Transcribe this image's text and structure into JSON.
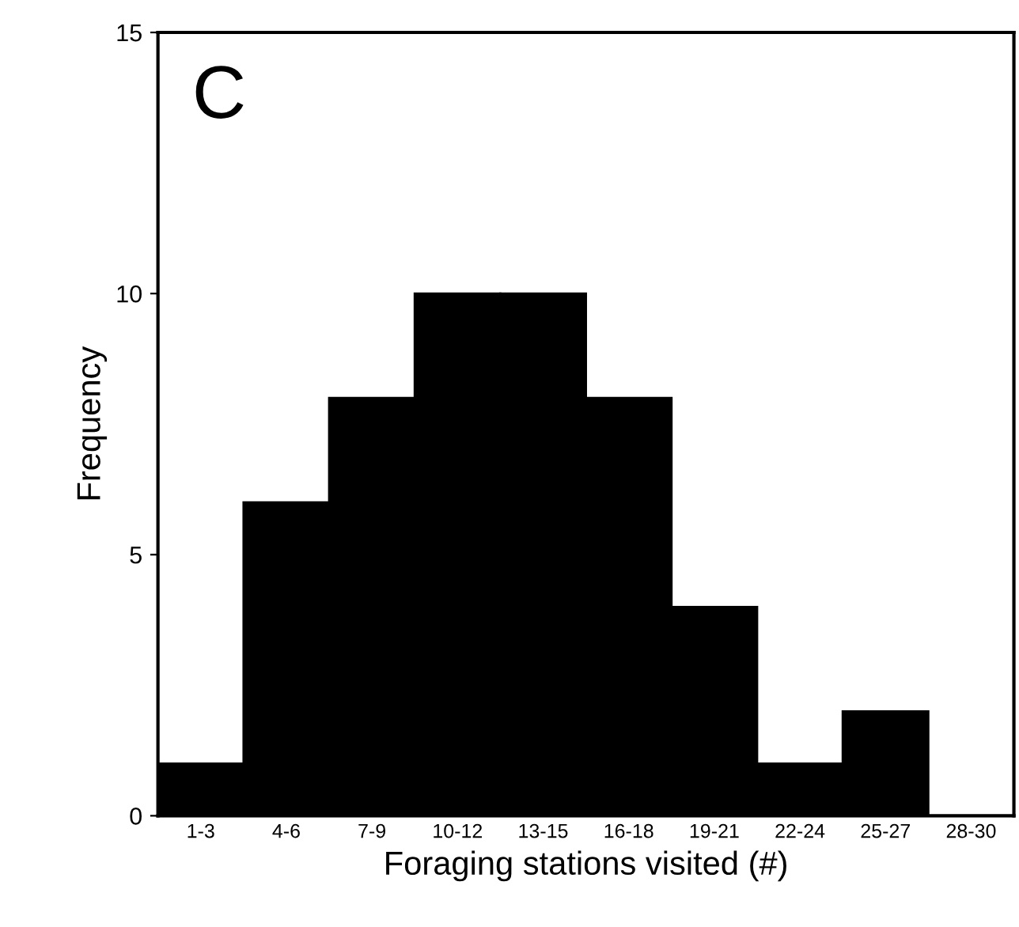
{
  "chart_data": {
    "type": "bar",
    "xlabel": "Foraging stations visited (#)",
    "ylabel": "Frequency",
    "annotations": [
      "C"
    ],
    "categories": [
      "1-3",
      "4-6",
      "7-9",
      "10-12",
      "13-15",
      "16-18",
      "19-21",
      "22-24",
      "25-27",
      "28-30"
    ],
    "values": [
      1,
      6,
      8,
      10,
      10,
      8,
      4,
      1,
      2,
      0
    ],
    "color": "#000000",
    "ylim": [
      0,
      15
    ],
    "yticks": [
      0,
      5,
      10,
      15
    ],
    "grid": false
  }
}
